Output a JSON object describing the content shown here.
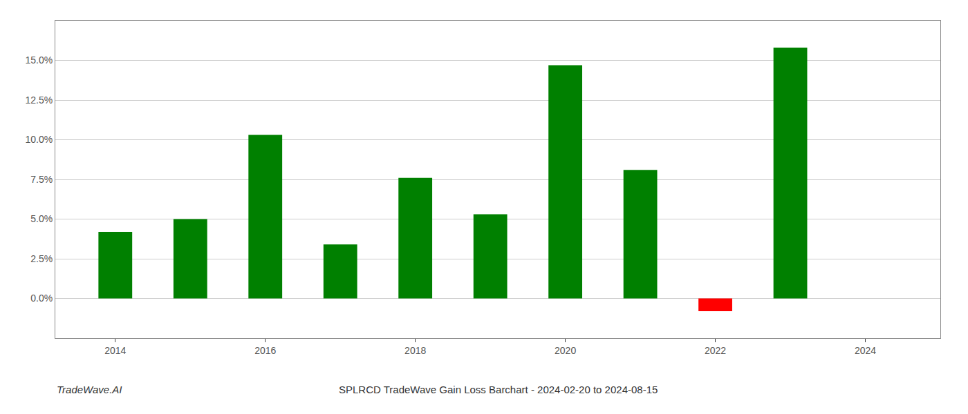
{
  "chart_data": {
    "type": "bar",
    "title": "SPLRCD TradeWave Gain Loss Barchart - 2024-02-20 to 2024-08-15",
    "annotations": [
      "TradeWave.AI"
    ],
    "x": [
      2014,
      2015,
      2016,
      2017,
      2018,
      2019,
      2020,
      2021,
      2022,
      2023
    ],
    "values": [
      0.042,
      0.05,
      0.103,
      0.034,
      0.076,
      0.053,
      0.147,
      0.081,
      -0.008,
      0.158
    ],
    "colors": [
      "#008000",
      "#008000",
      "#008000",
      "#008000",
      "#008000",
      "#008000",
      "#008000",
      "#008000",
      "#ff0000",
      "#008000"
    ],
    "xlim": [
      2013.2,
      2025.0
    ],
    "xticks": [
      2014,
      2016,
      2018,
      2020,
      2022,
      2024
    ],
    "ylim": [
      -0.025,
      0.175
    ],
    "yticks": [
      {
        "value": 0.0,
        "label": "0.0%"
      },
      {
        "value": 0.025,
        "label": "2.5%"
      },
      {
        "value": 0.05,
        "label": "5.0%"
      },
      {
        "value": 0.075,
        "label": "7.5%"
      },
      {
        "value": 0.1,
        "label": "10.0%"
      },
      {
        "value": 0.125,
        "label": "12.5%"
      },
      {
        "value": 0.15,
        "label": "15.0%"
      }
    ],
    "grid": true
  }
}
